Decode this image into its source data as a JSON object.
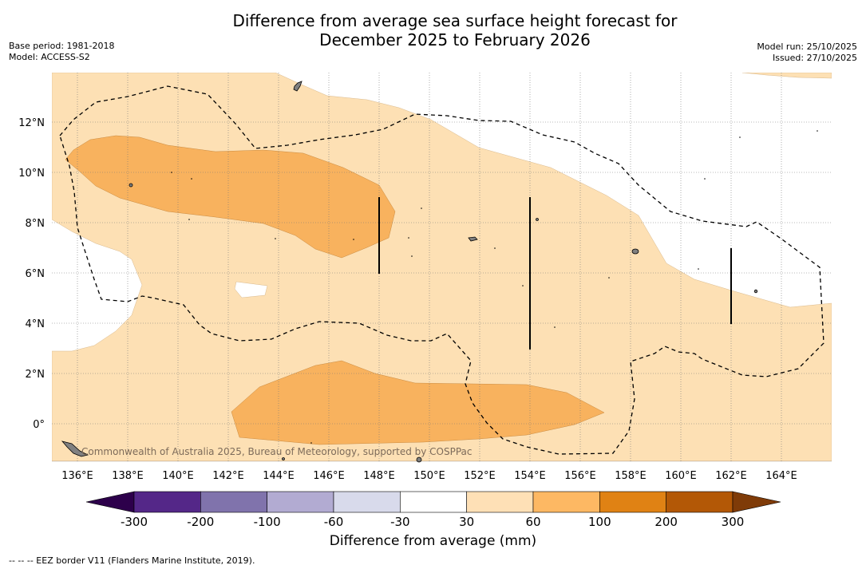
{
  "title": {
    "line1": "Difference from average sea surface height forecast for",
    "line2": "December 2025 to February 2026"
  },
  "meta_left": {
    "base_period": "Base period: 1981-2018",
    "model": "Model: ACCESS-S2"
  },
  "meta_right": {
    "model_run": "Model run: 25/10/2025",
    "issued": "Issued: 27/10/2025"
  },
  "map": {
    "lat_labels": [
      "12°N",
      "10°N",
      "8°N",
      "6°N",
      "4°N",
      "2°N",
      "0°"
    ],
    "lon_labels": [
      "136°E",
      "138°E",
      "140°E",
      "142°E",
      "144°E",
      "146°E",
      "148°E",
      "150°E",
      "152°E",
      "154°E",
      "156°E",
      "158°E",
      "160°E",
      "162°E",
      "164°E"
    ],
    "copyright": "Commonwealth of Australia 2025, Bureau of Meteorology, supported by COSPPac",
    "colors": {
      "light_orange": "#fde0b4",
      "medium_orange": "#f8b25e",
      "land": "#808080"
    }
  },
  "colorbar": {
    "ticks": [
      "-300",
      "-200",
      "-100",
      "-60",
      "-30",
      "30",
      "60",
      "100",
      "200",
      "300"
    ],
    "colors": [
      "#2d004b",
      "#542788",
      "#8073ac",
      "#b2abd2",
      "#d8daeb",
      "#ffffff",
      "#fee0b6",
      "#fdb863",
      "#e08214",
      "#b35806",
      "#7f3b08"
    ],
    "label": "Difference from average (mm)"
  },
  "footnote": "--  --  -- EEZ border V11 (Flanders Marine Institute, 2019)."
}
